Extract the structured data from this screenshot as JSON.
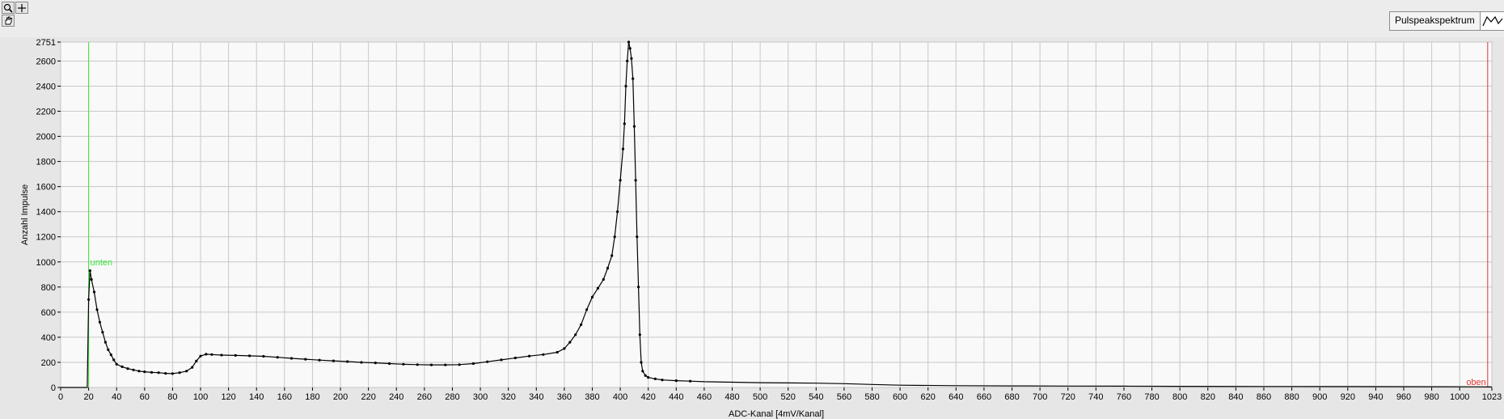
{
  "legend": {
    "label": "Pulspeakspektrum"
  },
  "toolbar": {
    "tools": [
      "zoom-icon",
      "crosshair-icon",
      "pan-icon"
    ]
  },
  "colors": {
    "series": "#000000",
    "cursor_lower": "#39e639",
    "cursor_upper": "#e53333",
    "plot_bg": "#f9f9f9",
    "grid": "#c8c8c8"
  },
  "chart_data": {
    "type": "line",
    "title": "",
    "xlabel": "ADC-Kanal   [4mV/Kanal]",
    "ylabel": "Anzahl Impulse",
    "xlim": [
      0,
      1023
    ],
    "ylim": [
      0,
      2751
    ],
    "xticks": [
      0,
      20,
      40,
      60,
      80,
      100,
      120,
      140,
      160,
      180,
      200,
      220,
      240,
      260,
      280,
      300,
      320,
      340,
      360,
      380,
      400,
      420,
      440,
      460,
      480,
      500,
      520,
      540,
      560,
      580,
      600,
      620,
      640,
      660,
      680,
      700,
      720,
      740,
      760,
      780,
      800,
      820,
      840,
      860,
      880,
      900,
      920,
      940,
      960,
      980,
      1000,
      1023
    ],
    "yticks": [
      0,
      200,
      400,
      600,
      800,
      1000,
      1200,
      1400,
      1600,
      1800,
      2000,
      2200,
      2400,
      2600,
      2751
    ],
    "grid": true,
    "legend_position": "top-right",
    "cursors": [
      {
        "label": "unten",
        "x": 20
      },
      {
        "label": "oben",
        "x": 1020
      }
    ],
    "series": [
      {
        "name": "Pulspeakspektrum",
        "points": [
          [
            0,
            0
          ],
          [
            19,
            0
          ],
          [
            20,
            700
          ],
          [
            21,
            930
          ],
          [
            22,
            860
          ],
          [
            24,
            760
          ],
          [
            26,
            620
          ],
          [
            28,
            520
          ],
          [
            30,
            440
          ],
          [
            32,
            360
          ],
          [
            34,
            300
          ],
          [
            36,
            260
          ],
          [
            38,
            220
          ],
          [
            40,
            185
          ],
          [
            44,
            165
          ],
          [
            48,
            150
          ],
          [
            52,
            140
          ],
          [
            56,
            130
          ],
          [
            60,
            125
          ],
          [
            65,
            120
          ],
          [
            70,
            118
          ],
          [
            75,
            112
          ],
          [
            80,
            110
          ],
          [
            85,
            118
          ],
          [
            90,
            130
          ],
          [
            94,
            160
          ],
          [
            97,
            210
          ],
          [
            100,
            250
          ],
          [
            104,
            265
          ],
          [
            108,
            262
          ],
          [
            115,
            258
          ],
          [
            125,
            255
          ],
          [
            135,
            252
          ],
          [
            145,
            248
          ],
          [
            155,
            240
          ],
          [
            165,
            232
          ],
          [
            175,
            225
          ],
          [
            185,
            218
          ],
          [
            195,
            212
          ],
          [
            205,
            206
          ],
          [
            215,
            200
          ],
          [
            225,
            196
          ],
          [
            235,
            190
          ],
          [
            245,
            185
          ],
          [
            255,
            182
          ],
          [
            265,
            180
          ],
          [
            275,
            180
          ],
          [
            285,
            182
          ],
          [
            295,
            190
          ],
          [
            305,
            205
          ],
          [
            315,
            220
          ],
          [
            325,
            235
          ],
          [
            335,
            250
          ],
          [
            345,
            262
          ],
          [
            355,
            280
          ],
          [
            360,
            310
          ],
          [
            364,
            360
          ],
          [
            368,
            420
          ],
          [
            372,
            500
          ],
          [
            376,
            620
          ],
          [
            380,
            720
          ],
          [
            384,
            790
          ],
          [
            388,
            860
          ],
          [
            391,
            950
          ],
          [
            394,
            1050
          ],
          [
            396,
            1200
          ],
          [
            398,
            1400
          ],
          [
            400,
            1650
          ],
          [
            402,
            1900
          ],
          [
            403,
            2100
          ],
          [
            404,
            2400
          ],
          [
            405,
            2600
          ],
          [
            406,
            2751
          ],
          [
            407,
            2700
          ],
          [
            408,
            2620
          ],
          [
            409,
            2460
          ],
          [
            410,
            2080
          ],
          [
            411,
            1650
          ],
          [
            412,
            1200
          ],
          [
            413,
            800
          ],
          [
            414,
            420
          ],
          [
            415,
            200
          ],
          [
            416,
            130
          ],
          [
            418,
            95
          ],
          [
            420,
            80
          ],
          [
            425,
            68
          ],
          [
            430,
            60
          ],
          [
            440,
            54
          ],
          [
            450,
            50
          ],
          [
            460,
            46
          ],
          [
            480,
            42
          ],
          [
            500,
            38
          ],
          [
            520,
            36
          ],
          [
            540,
            34
          ],
          [
            560,
            30
          ],
          [
            580,
            24
          ],
          [
            600,
            18
          ],
          [
            640,
            14
          ],
          [
            680,
            12
          ],
          [
            720,
            11
          ],
          [
            760,
            10
          ],
          [
            800,
            9
          ],
          [
            860,
            8
          ],
          [
            920,
            7
          ],
          [
            980,
            6
          ],
          [
            1010,
            5
          ],
          [
            1023,
            4
          ]
        ]
      }
    ]
  }
}
